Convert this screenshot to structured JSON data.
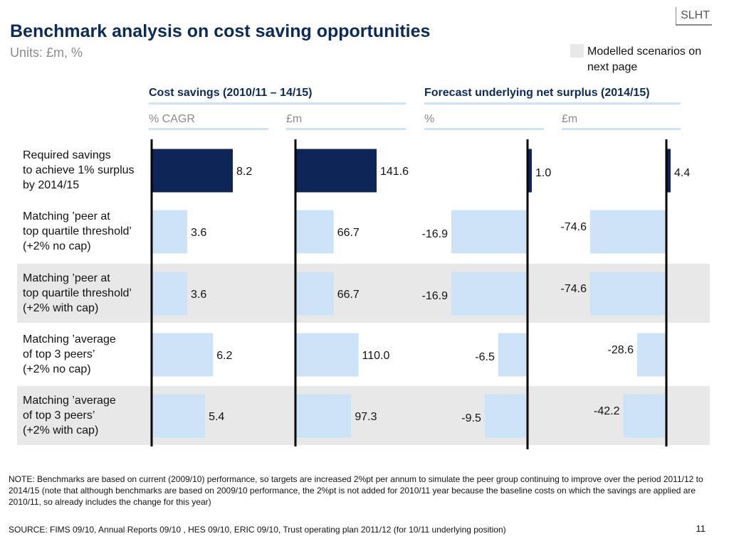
{
  "brand": "SLHT",
  "title": "Benchmark analysis on cost saving opportunities",
  "units": "Units: £m, %",
  "legend": {
    "label": "Modelled scenarios on next page",
    "color": "#e8e8e8"
  },
  "sections": [
    {
      "title": "Cost savings (2010/11 – 14/15)"
    },
    {
      "title": "Forecast underlying net surplus (2014/15)"
    }
  ],
  "colors": {
    "highlight": "#0d2557",
    "normal": "#cce3f7",
    "band": "#e8e8e8",
    "header": "#0a2a5c"
  },
  "chart_data": {
    "type": "bar",
    "orientation": "horizontal",
    "categories": [
      "Required savings to achieve 1% surplus by 2014/15",
      "Matching ’peer at top quartile threshold’ (+2% no cap)",
      "Matching ’peer at top quartile threshold’ (+2% with cap)",
      "Matching ’average of top 3 peers’ (+2% no cap)",
      "Matching ’average of top 3 peers’ (+2% with cap)"
    ],
    "category_lines": [
      [
        "Required savings",
        "to achieve 1% surplus",
        "by 2014/15"
      ],
      [
        "Matching ’peer at",
        "top quartile threshold’",
        "(+2% no cap)"
      ],
      [
        "Matching ’peer at",
        "top quartile threshold’",
        "(+2% with cap)"
      ],
      [
        "Matching ’average",
        "of top 3 peers’",
        "(+2% no cap)"
      ],
      [
        "Matching ’average",
        "of top 3 peers’",
        "(+2% with cap)"
      ]
    ],
    "highlighted_category": 0,
    "modelled_scenarios": [
      2,
      4
    ],
    "series": [
      {
        "name": "% CAGR",
        "group": "Cost savings (2010/11 – 14/15)",
        "values": [
          8.2,
          3.6,
          3.6,
          6.2,
          5.4
        ],
        "labels": [
          "8.2",
          "3.6",
          "3.6",
          "6.2",
          "5.4"
        ],
        "xlim": [
          0,
          8.2
        ]
      },
      {
        "name": "£m",
        "group": "Cost savings (2010/11 – 14/15)",
        "values": [
          141.6,
          66.7,
          66.7,
          110.0,
          97.3
        ],
        "labels": [
          "141.6",
          "66.7",
          "66.7",
          "110.0",
          "97.3"
        ],
        "xlim": [
          0,
          141.6
        ]
      },
      {
        "name": "%",
        "group": "Forecast underlying net surplus (2014/15)",
        "values": [
          1.0,
          -16.9,
          -16.9,
          -6.5,
          -9.5
        ],
        "labels": [
          "1.0",
          "-16.9",
          "-16.9",
          "-6.5",
          "-9.5"
        ],
        "xlim": [
          -16.9,
          1.0
        ]
      },
      {
        "name": "£m",
        "group": "Forecast underlying net surplus (2014/15)",
        "values": [
          4.4,
          -74.6,
          -74.6,
          -28.6,
          -42.2
        ],
        "labels": [
          "4.4",
          "-74.6",
          "-74.6",
          "-28.6",
          "-42.2"
        ],
        "xlim": [
          -74.6,
          4.4
        ]
      }
    ]
  },
  "note": "NOTE: Benchmarks are based on current (2009/10) performance, so targets are increased 2%pt per annum to simulate the peer group continuing to improve over the period 2011/12 to 2014/15 (note that although benchmarks are based on 2009/10 performance, the 2%pt is not added for 2010/11 year because the baseline costs on which the savings are applied are 2010/11, so already includes the change for this year)",
  "source": "SOURCE: FIMS 09/10, Annual Reports 09/10 , HES 09/10, ERIC 09/10, Trust operating plan 2011/12 (for 10/11 underlying position)",
  "page_number": "11"
}
